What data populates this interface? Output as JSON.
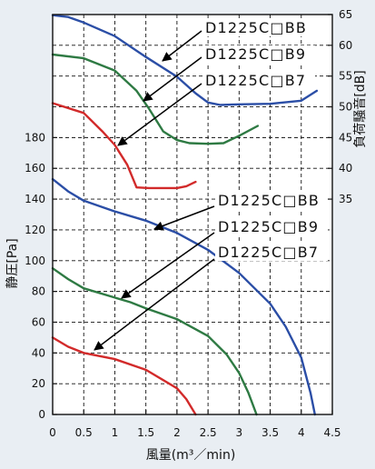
{
  "chart_data": {
    "type": "line",
    "xlabel": "風量(m³／min)",
    "ylabel": "静圧[Pa]",
    "y2label": "負荷騒音[dB]",
    "xlim": [
      0,
      4.5
    ],
    "ylim": [
      0,
      260
    ],
    "y2lim": [
      0,
      65
    ],
    "xticks": [
      0,
      0.5,
      1,
      1.5,
      2,
      2.5,
      3,
      3.5,
      4,
      4.5
    ],
    "yticks": [
      0,
      20,
      40,
      60,
      80,
      100,
      120,
      140,
      160,
      180
    ],
    "y2ticks": [
      35,
      40,
      45,
      50,
      55,
      60,
      65
    ],
    "grid": true,
    "series": [
      {
        "name": "D1225C□BB",
        "y_axis": "right",
        "color": "#2b4ea6",
        "x": [
          0,
          0.25,
          0.5,
          1,
          1.5,
          2,
          2.3,
          2.5,
          2.7,
          3,
          3.5,
          4,
          4.25
        ],
        "y": [
          64.9,
          64.6,
          63.7,
          61.5,
          58.1,
          54.9,
          52.2,
          50.7,
          50.3,
          50.4,
          50.5,
          51.0,
          52.6
        ]
      },
      {
        "name": "D1225C□B9",
        "y_axis": "right",
        "color": "#2e7a43",
        "x": [
          0,
          0.5,
          1,
          1.35,
          1.55,
          1.78,
          2,
          2.2,
          2.5,
          2.75,
          3,
          3.3
        ],
        "y": [
          58.5,
          57.9,
          55.9,
          52.6,
          49.7,
          46.0,
          44.6,
          44.1,
          44.0,
          44.1,
          45.3,
          46.9
        ]
      },
      {
        "name": "D1225C□B7",
        "y_axis": "right",
        "color": "#d22a2a",
        "x": [
          0,
          0.5,
          0.8,
          1,
          1.2,
          1.35,
          1.55,
          2,
          2.15,
          2.3
        ],
        "y": [
          50.6,
          49.0,
          46.0,
          43.8,
          40.6,
          36.9,
          36.8,
          36.8,
          37.1,
          37.8
        ]
      },
      {
        "name": "D1225C□BB",
        "y_axis": "left",
        "color": "#2b4ea6",
        "x": [
          0,
          0.25,
          0.5,
          1,
          1.5,
          2,
          2.5,
          3,
          3.5,
          3.75,
          4,
          4.15,
          4.22
        ],
        "y": [
          153,
          145,
          139,
          132,
          126,
          118,
          107,
          92,
          72,
          57,
          37,
          14,
          0
        ]
      },
      {
        "name": "D1225C□B9",
        "y_axis": "left",
        "color": "#2e7a43",
        "x": [
          0,
          0.25,
          0.5,
          1,
          1.25,
          1.5,
          2,
          2.5,
          2.8,
          3,
          3.15,
          3.28
        ],
        "y": [
          95,
          88,
          82,
          76,
          73,
          69,
          62,
          51,
          39,
          27,
          14,
          0
        ]
      },
      {
        "name": "D1225C□B7",
        "y_axis": "left",
        "color": "#d22a2a",
        "x": [
          0,
          0.25,
          0.5,
          1,
          1.5,
          2,
          2.15,
          2.3
        ],
        "y": [
          50,
          44,
          40,
          36,
          29,
          17,
          10,
          0
        ]
      }
    ]
  }
}
